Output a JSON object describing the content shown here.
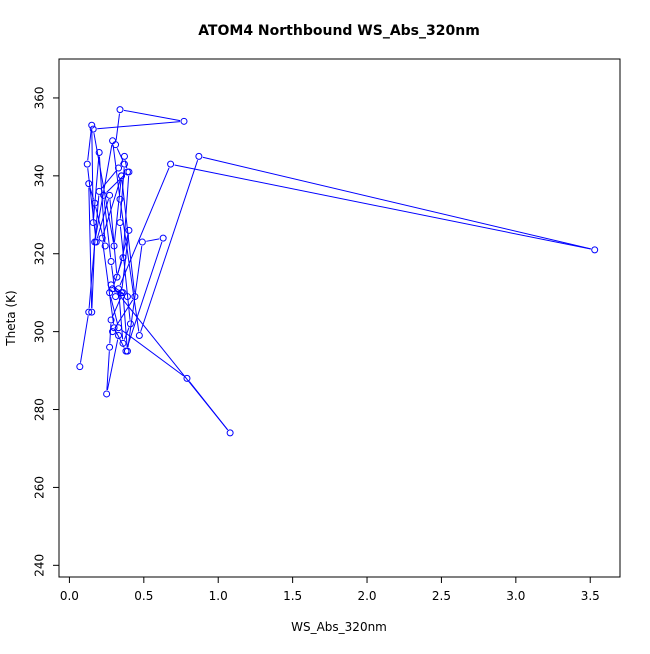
{
  "chart_data": {
    "type": "line",
    "title": "ATOM4 Northbound WS_Abs_320nm",
    "xlabel": "WS_Abs_320nm",
    "ylabel": "Theta (K)",
    "xlim": [
      -0.07,
      3.7
    ],
    "ylim": [
      237,
      370
    ],
    "x_ticks": [
      0.0,
      0.5,
      1.0,
      1.5,
      2.0,
      2.5,
      3.0,
      3.5
    ],
    "x_tick_labels": [
      "0.0",
      "0.5",
      "1.0",
      "1.5",
      "2.0",
      "2.5",
      "3.0",
      "3.5"
    ],
    "y_ticks": [
      240,
      260,
      280,
      300,
      320,
      340,
      360
    ],
    "y_tick_labels": [
      "240",
      "260",
      "280",
      "300",
      "320",
      "340",
      "360"
    ],
    "grid": false,
    "marker": "open-circle",
    "series": [
      {
        "color": "#0000ff",
        "x": [
          0.07,
          0.13,
          0.2,
          0.33,
          0.37,
          0.39,
          0.23,
          0.28,
          0.31,
          0.35,
          0.4,
          0.32,
          0.27,
          0.18,
          0.12,
          0.15,
          0.16,
          0.2,
          0.24,
          0.17,
          0.13,
          0.15,
          0.17,
          0.29,
          0.34,
          0.47,
          0.87,
          3.53,
          0.68,
          0.33,
          0.36,
          0.41,
          0.34,
          0.37,
          0.31,
          0.34,
          0.77,
          0.16,
          0.3,
          0.35,
          0.44,
          0.29,
          0.33,
          0.25,
          0.27,
          0.28,
          0.36,
          0.39,
          0.49,
          0.63,
          0.38,
          0.3,
          0.22,
          0.35,
          0.4,
          0.36,
          0.29,
          0.39,
          0.28,
          1.08,
          0.79,
          0.33,
          0.27
        ],
        "y": [
          291,
          305,
          336,
          342,
          345,
          341,
          335,
          318,
          309,
          310,
          326,
          314,
          335,
          323,
          343,
          353,
          328,
          346,
          322,
          333,
          338,
          305,
          323,
          349,
          334,
          299,
          345,
          321,
          343,
          311,
          297,
          302,
          328,
          343,
          348,
          357,
          354,
          352,
          322,
          340,
          309,
          300,
          299,
          284,
          296,
          303,
          310,
          295,
          323,
          324,
          295,
          301,
          324,
          340,
          341,
          319,
          311,
          309,
          312,
          274,
          288,
          301,
          310
        ]
      }
    ]
  }
}
